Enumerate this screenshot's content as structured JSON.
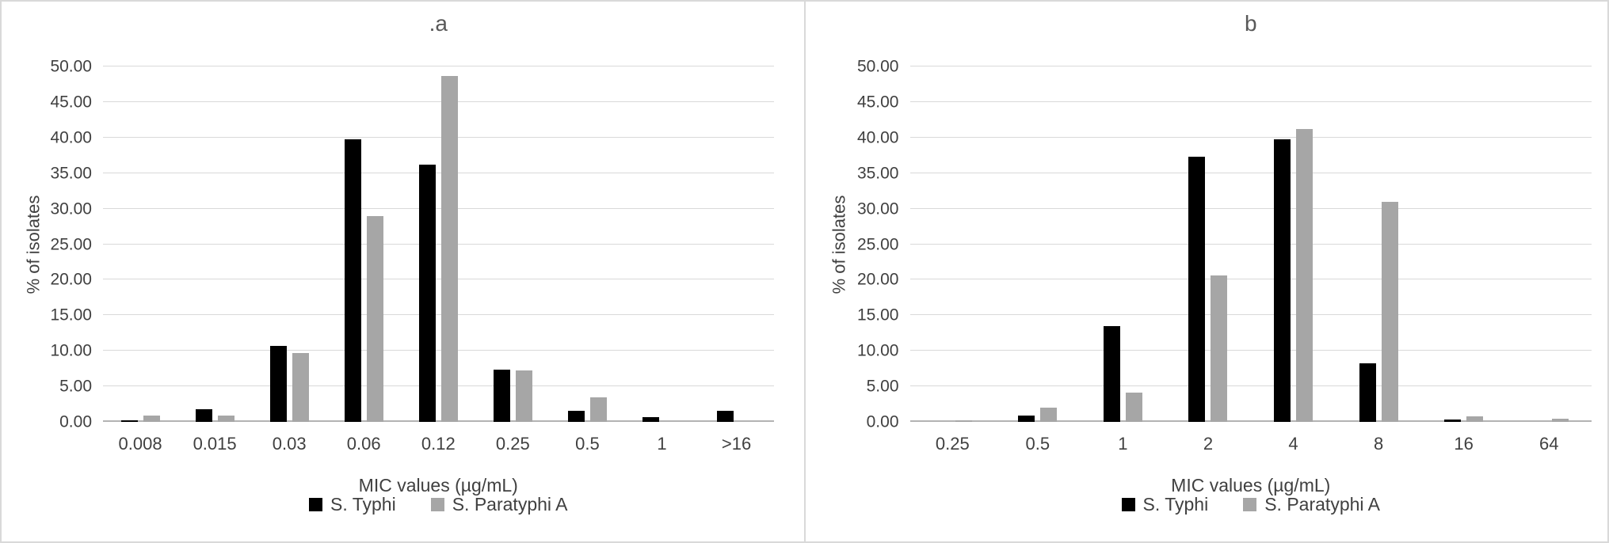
{
  "figure": {
    "background": "#ffffff",
    "divider_color": "#d9d9d9",
    "text_color": "#404040"
  },
  "legend": {
    "items": [
      {
        "label": "S. Typhi",
        "color": "#000000"
      },
      {
        "label": "S. Paratyphi A",
        "color": "#a6a6a6"
      }
    ]
  },
  "chart_data": [
    {
      "type": "bar",
      "title": ".a",
      "xlabel": "MIC values (µg/mL)",
      "ylabel": "% of isolates",
      "ylim": [
        0,
        50
      ],
      "ytick_step": 5,
      "yticks": [
        "0.00",
        "5.00",
        "10.00",
        "15.00",
        "20.00",
        "25.00",
        "30.00",
        "35.00",
        "40.00",
        "45.00",
        "50.00"
      ],
      "grid": true,
      "legend_position": "bottom",
      "categories": [
        "0.008",
        "0.015",
        "0.03",
        "0.06",
        "0.12",
        "0.25",
        "0.5",
        "1",
        ">16"
      ],
      "series": [
        {
          "name": "S. Typhi",
          "color": "#000000",
          "values": [
            0.2,
            1.8,
            10.7,
            39.8,
            36.2,
            7.3,
            1.6,
            0.7,
            1.6
          ]
        },
        {
          "name": "S. Paratyphi A",
          "color": "#a6a6a6",
          "values": [
            0.9,
            0.9,
            9.7,
            28.9,
            48.7,
            7.2,
            3.5,
            0,
            0
          ]
        }
      ]
    },
    {
      "type": "bar",
      "title": "b",
      "xlabel": "MIC values (µg/mL)",
      "ylabel": "% of isolates",
      "ylim": [
        0,
        50
      ],
      "ytick_step": 5,
      "yticks": [
        "0.00",
        "5.00",
        "10.00",
        "15.00",
        "20.00",
        "25.00",
        "30.00",
        "35.00",
        "40.00",
        "45.00",
        "50.00"
      ],
      "grid": true,
      "legend_position": "bottom",
      "categories": [
        "0.25",
        "0.5",
        "1",
        "2",
        "4",
        "8",
        "16",
        "64"
      ],
      "series": [
        {
          "name": "S. Typhi",
          "color": "#000000",
          "values": [
            0,
            0.9,
            13.5,
            37.3,
            39.8,
            8.2,
            0.3,
            0
          ]
        },
        {
          "name": "S. Paratyphi A",
          "color": "#a6a6a6",
          "values": [
            0.2,
            2.0,
            4.1,
            20.6,
            41.2,
            31.0,
            0.8,
            0.4
          ]
        }
      ]
    }
  ]
}
